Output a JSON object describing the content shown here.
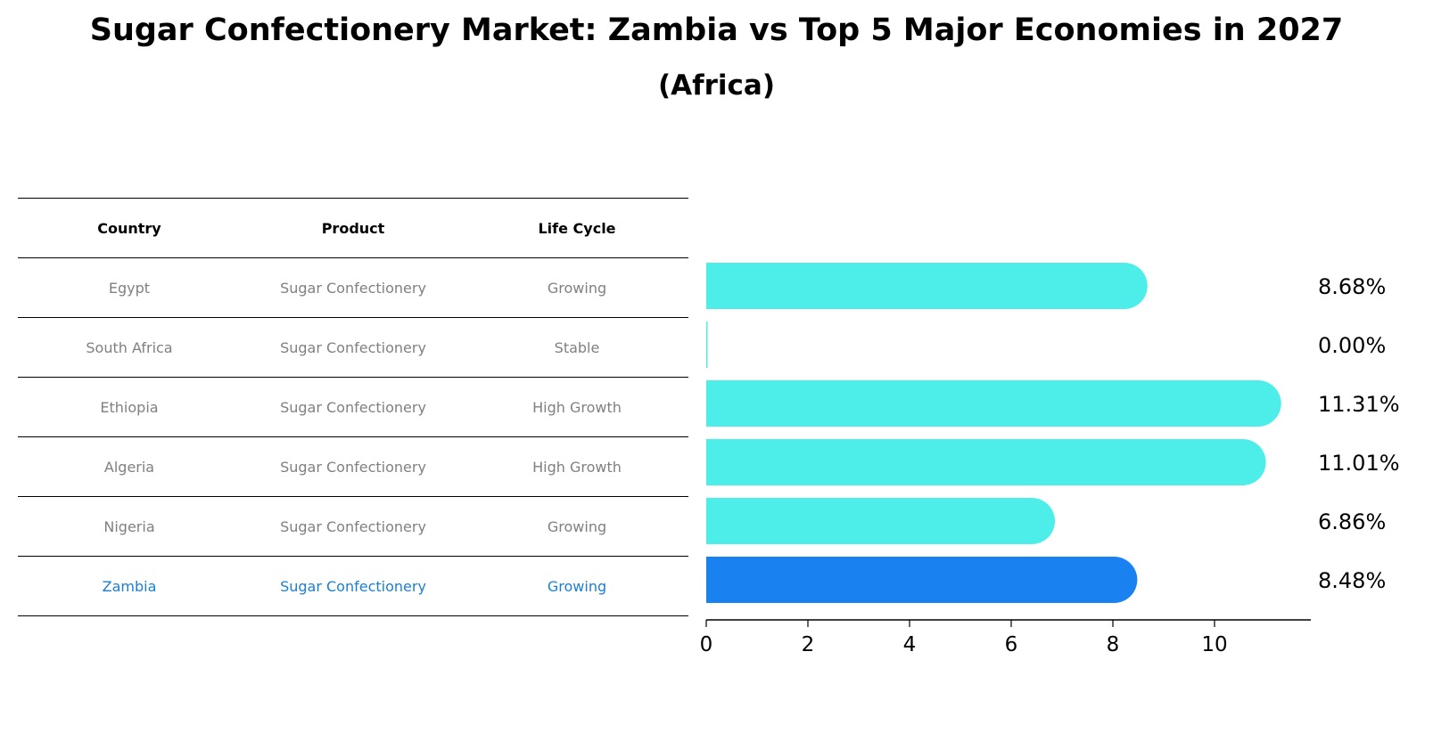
{
  "title": "Sugar Confectionery Market: Zambia vs Top 5 Major Economies in 2027",
  "subtitle": "(Africa)",
  "table": {
    "headers": [
      "Country",
      "Product",
      "Life Cycle"
    ],
    "rows": [
      {
        "country": "Egypt",
        "product": "Sugar Confectionery",
        "life_cycle": "Growing"
      },
      {
        "country": "South Africa",
        "product": "Sugar Confectionery",
        "life_cycle": "Stable"
      },
      {
        "country": "Ethiopia",
        "product": "Sugar Confectionery",
        "life_cycle": "High Growth"
      },
      {
        "country": "Algeria",
        "product": "Sugar Confectionery",
        "life_cycle": "High Growth"
      },
      {
        "country": "Nigeria",
        "product": "Sugar Confectionery",
        "life_cycle": "Growing"
      },
      {
        "country": "Zambia",
        "product": "Sugar Confectionery",
        "life_cycle": "Growing"
      }
    ]
  },
  "colors": {
    "bar": "#4deeea",
    "highlight": "#1a82f0",
    "muted_text": "#808080",
    "highlight_text": "#1a7fd4"
  },
  "chart_data": {
    "type": "bar",
    "orientation": "horizontal",
    "categories": [
      "Egypt",
      "South Africa",
      "Ethiopia",
      "Algeria",
      "Nigeria",
      "Zambia"
    ],
    "values": [
      8.68,
      0.0,
      11.31,
      11.01,
      6.86,
      8.48
    ],
    "value_labels": [
      "8.68%",
      "0.00%",
      "11.31%",
      "11.01%",
      "6.86%",
      "8.48%"
    ],
    "highlight": "Zambia",
    "xticks": [
      "0",
      "2",
      "4",
      "6",
      "8",
      "10"
    ],
    "xlim": [
      0,
      11.9
    ],
    "grid": false
  }
}
